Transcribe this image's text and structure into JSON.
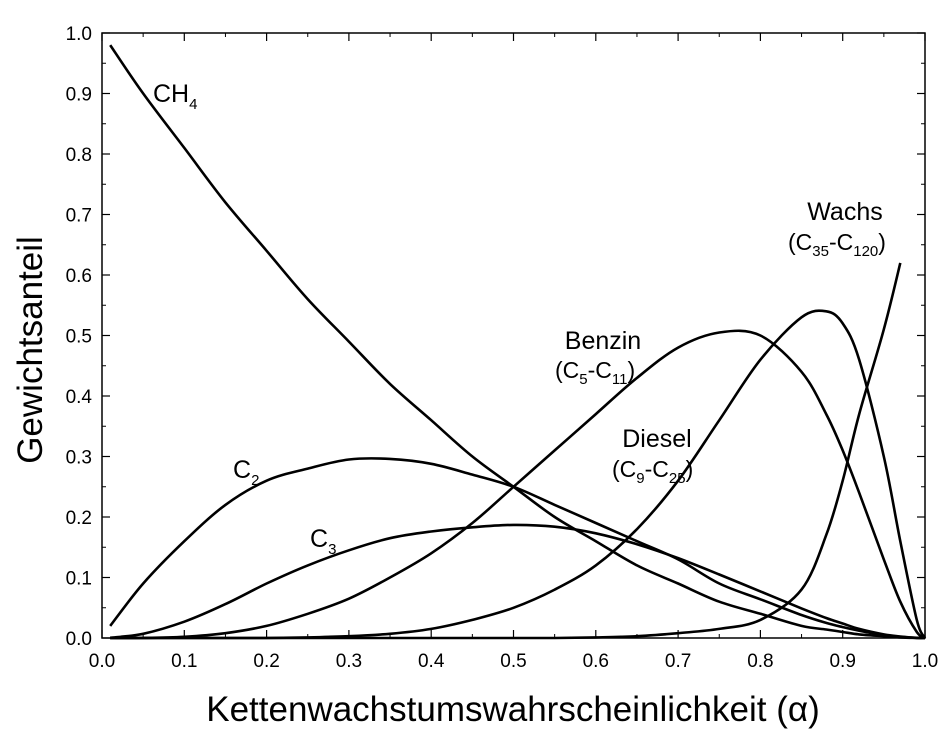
{
  "chart_data": {
    "type": "line",
    "title": "",
    "xlabel": "Kettenwachstumswahrscheinlichkeit (α)",
    "ylabel": "Gewichtsanteil",
    "xlim": [
      0.0,
      1.0
    ],
    "ylim": [
      0.0,
      1.0
    ],
    "xticks": [
      "0.0",
      "0.1",
      "0.2",
      "0.3",
      "0.4",
      "0.5",
      "0.6",
      "0.7",
      "0.8",
      "0.9",
      "1.0"
    ],
    "yticks": [
      "0.0",
      "0.1",
      "0.2",
      "0.3",
      "0.4",
      "0.5",
      "0.6",
      "0.7",
      "0.8",
      "0.9",
      "1.0"
    ],
    "grid": false,
    "legend": "none (inline curve labels)",
    "line_color": "#000000",
    "x": [
      0.01,
      0.05,
      0.1,
      0.15,
      0.2,
      0.25,
      0.3,
      0.35,
      0.4,
      0.45,
      0.5,
      0.55,
      0.6,
      0.65,
      0.7,
      0.75,
      0.8,
      0.85,
      0.88,
      0.9,
      0.92,
      0.95,
      0.97,
      0.99,
      1.0
    ],
    "series": [
      {
        "name": "CH4",
        "label_main": "CH",
        "label_sub": "4",
        "values": [
          0.98,
          0.9,
          0.81,
          0.72,
          0.64,
          0.56,
          0.49,
          0.42,
          0.36,
          0.3,
          0.25,
          0.2,
          0.16,
          0.12,
          0.09,
          0.06,
          0.04,
          0.02,
          0.014,
          0.01,
          0.006,
          0.003,
          0.001,
          0.0001,
          0.0
        ]
      },
      {
        "name": "C2",
        "label_main": "C",
        "label_sub": "2",
        "values": [
          0.02,
          0.09,
          0.16,
          0.22,
          0.26,
          0.28,
          0.295,
          0.296,
          0.288,
          0.27,
          0.25,
          0.22,
          0.19,
          0.16,
          0.13,
          0.09,
          0.064,
          0.038,
          0.025,
          0.018,
          0.012,
          0.005,
          0.002,
          0.0002,
          0.0
        ]
      },
      {
        "name": "C3",
        "label_main": "C",
        "label_sub": "3",
        "values": [
          0.0003,
          0.007,
          0.027,
          0.056,
          0.09,
          0.12,
          0.145,
          0.165,
          0.176,
          0.183,
          0.187,
          0.184,
          0.173,
          0.155,
          0.132,
          0.105,
          0.077,
          0.049,
          0.033,
          0.024,
          0.015,
          0.006,
          0.0025,
          0.0003,
          0.0
        ]
      },
      {
        "name": "Benzin (C5-C11)",
        "label_main": "Benzin",
        "range": [
          "(C",
          "5",
          "-C",
          "11",
          ")"
        ],
        "values": [
          0.0,
          0.0,
          0.002,
          0.008,
          0.02,
          0.04,
          0.065,
          0.1,
          0.14,
          0.19,
          0.25,
          0.31,
          0.37,
          0.43,
          0.48,
          0.505,
          0.5,
          0.44,
          0.37,
          0.31,
          0.24,
          0.13,
          0.06,
          0.01,
          0.0
        ]
      },
      {
        "name": "Diesel (C9-C25)",
        "label_main": "Diesel",
        "range": [
          "(C",
          "9",
          "-C",
          "25",
          ")"
        ],
        "values": [
          0.0,
          0.0,
          0.0,
          0.0,
          0.0,
          0.001,
          0.003,
          0.007,
          0.015,
          0.03,
          0.05,
          0.08,
          0.12,
          0.18,
          0.26,
          0.36,
          0.46,
          0.53,
          0.54,
          0.52,
          0.46,
          0.3,
          0.16,
          0.03,
          0.0
        ]
      },
      {
        "name": "Wachs (C35-C120)",
        "label_main": "Wachs",
        "range": [
          "(C",
          "35",
          "-C",
          "120",
          ")"
        ],
        "values": [
          0.0,
          0.0,
          0.0,
          0.0,
          0.0,
          0.0,
          0.0,
          0.0,
          0.0,
          0.0,
          0.0,
          0.0,
          0.001,
          0.003,
          0.008,
          0.015,
          0.03,
          0.08,
          0.17,
          0.26,
          0.37,
          0.51,
          0.62,
          null,
          null
        ]
      }
    ]
  }
}
